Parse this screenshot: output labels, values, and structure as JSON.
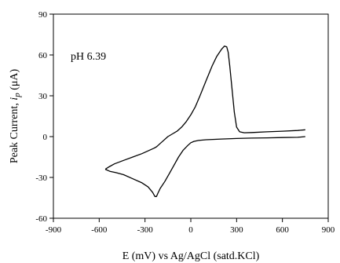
{
  "chart_data": {
    "type": "line",
    "xlabel": "E (mV) vs Ag/AgCl (satd.KCl)",
    "ylabel_prefix": "Peak Current, ",
    "ylabel_italic": "i",
    "ylabel_sub": "p",
    "ylabel_suffix": " (μA)",
    "annotation": "pH 6.39",
    "xlim": [
      -900,
      900
    ],
    "ylim": [
      -60,
      90
    ],
    "xticks": [
      -900,
      -600,
      -300,
      0,
      300,
      600,
      900
    ],
    "yticks": [
      -60,
      -30,
      0,
      30,
      60,
      90
    ],
    "grid": false,
    "series": [
      {
        "x": [
          -560,
          -540,
          -500,
          -440,
          -380,
          -320,
          -270,
          -240,
          -225,
          -215,
          -200,
          -180,
          -150,
          -120,
          -90,
          -60,
          -30,
          0,
          30,
          60,
          100,
          140,
          170,
          200,
          220,
          235,
          245,
          255,
          270,
          285,
          300,
          320,
          350,
          400,
          500,
          600,
          700,
          750
        ],
        "y": [
          -24,
          -22.5,
          -20,
          -17.5,
          -15,
          -12.5,
          -10,
          -8.5,
          -7.5,
          -6.5,
          -5,
          -3,
          0,
          2,
          4,
          7,
          11,
          16,
          22,
          30,
          41,
          52,
          59,
          64,
          66.5,
          66,
          62,
          52,
          35,
          18,
          7,
          3.5,
          2.8,
          3,
          3.5,
          4,
          4.5,
          5
        ]
      },
      {
        "x": [
          750,
          700,
          600,
          500,
          400,
          300,
          200,
          100,
          50,
          20,
          0,
          -20,
          -50,
          -80,
          -110,
          -140,
          -170,
          -200,
          -215,
          -225,
          -235,
          -250,
          -280,
          -320,
          -380,
          -440,
          -490,
          -530,
          -560
        ],
        "y": [
          0,
          -0.5,
          -0.7,
          -0.9,
          -1.1,
          -1.4,
          -1.8,
          -2.3,
          -2.8,
          -3.5,
          -4.5,
          -6.5,
          -10,
          -15,
          -21,
          -27,
          -33,
          -38,
          -41.5,
          -44,
          -44,
          -41,
          -37,
          -34,
          -31,
          -28,
          -26.5,
          -25.5,
          -24
        ]
      }
    ]
  }
}
